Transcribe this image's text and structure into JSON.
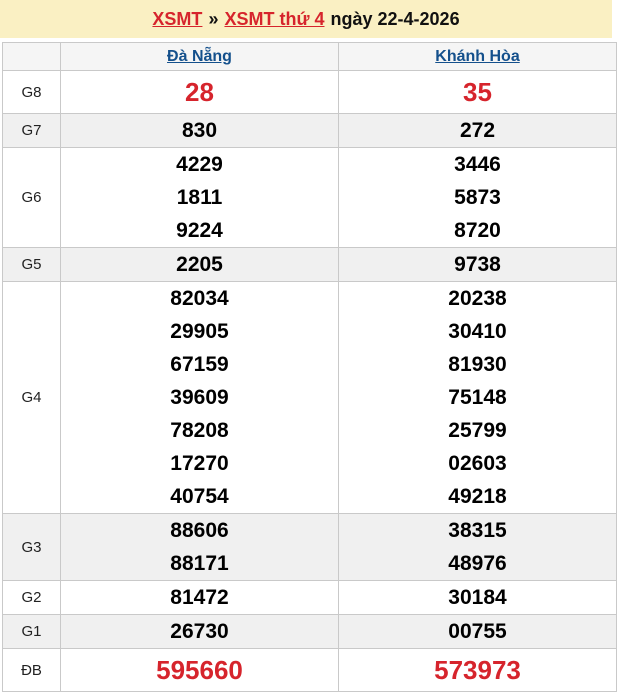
{
  "title": {
    "link1": "XSMT",
    "separator": "»",
    "link2": "XSMT thứ 4",
    "suffix": "ngày 22-4-2026"
  },
  "table": {
    "columns": [
      "Đà Nẵng",
      "Khánh Hòa"
    ],
    "rows": [
      {
        "label": "G8",
        "highlight": true,
        "values": [
          [
            "28"
          ],
          [
            "35"
          ]
        ]
      },
      {
        "label": "G7",
        "highlight": false,
        "values": [
          [
            "830"
          ],
          [
            "272"
          ]
        ]
      },
      {
        "label": "G6",
        "highlight": false,
        "values": [
          [
            "4229",
            "1811",
            "9224"
          ],
          [
            "3446",
            "5873",
            "8720"
          ]
        ]
      },
      {
        "label": "G5",
        "highlight": false,
        "values": [
          [
            "2205"
          ],
          [
            "9738"
          ]
        ]
      },
      {
        "label": "G4",
        "highlight": false,
        "values": [
          [
            "82034",
            "29905",
            "67159",
            "39609",
            "78208",
            "17270",
            "40754"
          ],
          [
            "20238",
            "30410",
            "81930",
            "75148",
            "25799",
            "02603",
            "49218"
          ]
        ]
      },
      {
        "label": "G3",
        "highlight": false,
        "values": [
          [
            "88606",
            "88171"
          ],
          [
            "38315",
            "48976"
          ]
        ]
      },
      {
        "label": "G2",
        "highlight": false,
        "values": [
          [
            "81472"
          ],
          [
            "30184"
          ]
        ]
      },
      {
        "label": "G1",
        "highlight": false,
        "values": [
          [
            "26730"
          ],
          [
            "00755"
          ]
        ]
      },
      {
        "label": "ĐB",
        "highlight": true,
        "values": [
          [
            "595660"
          ],
          [
            "573973"
          ]
        ]
      }
    ]
  },
  "colors": {
    "accent_red": "#d6242c",
    "link_blue": "#14508c",
    "band_yellow": "#faf0c3",
    "zebra_gray": "#f0f0f0",
    "border_gray": "#c9c9c9"
  }
}
